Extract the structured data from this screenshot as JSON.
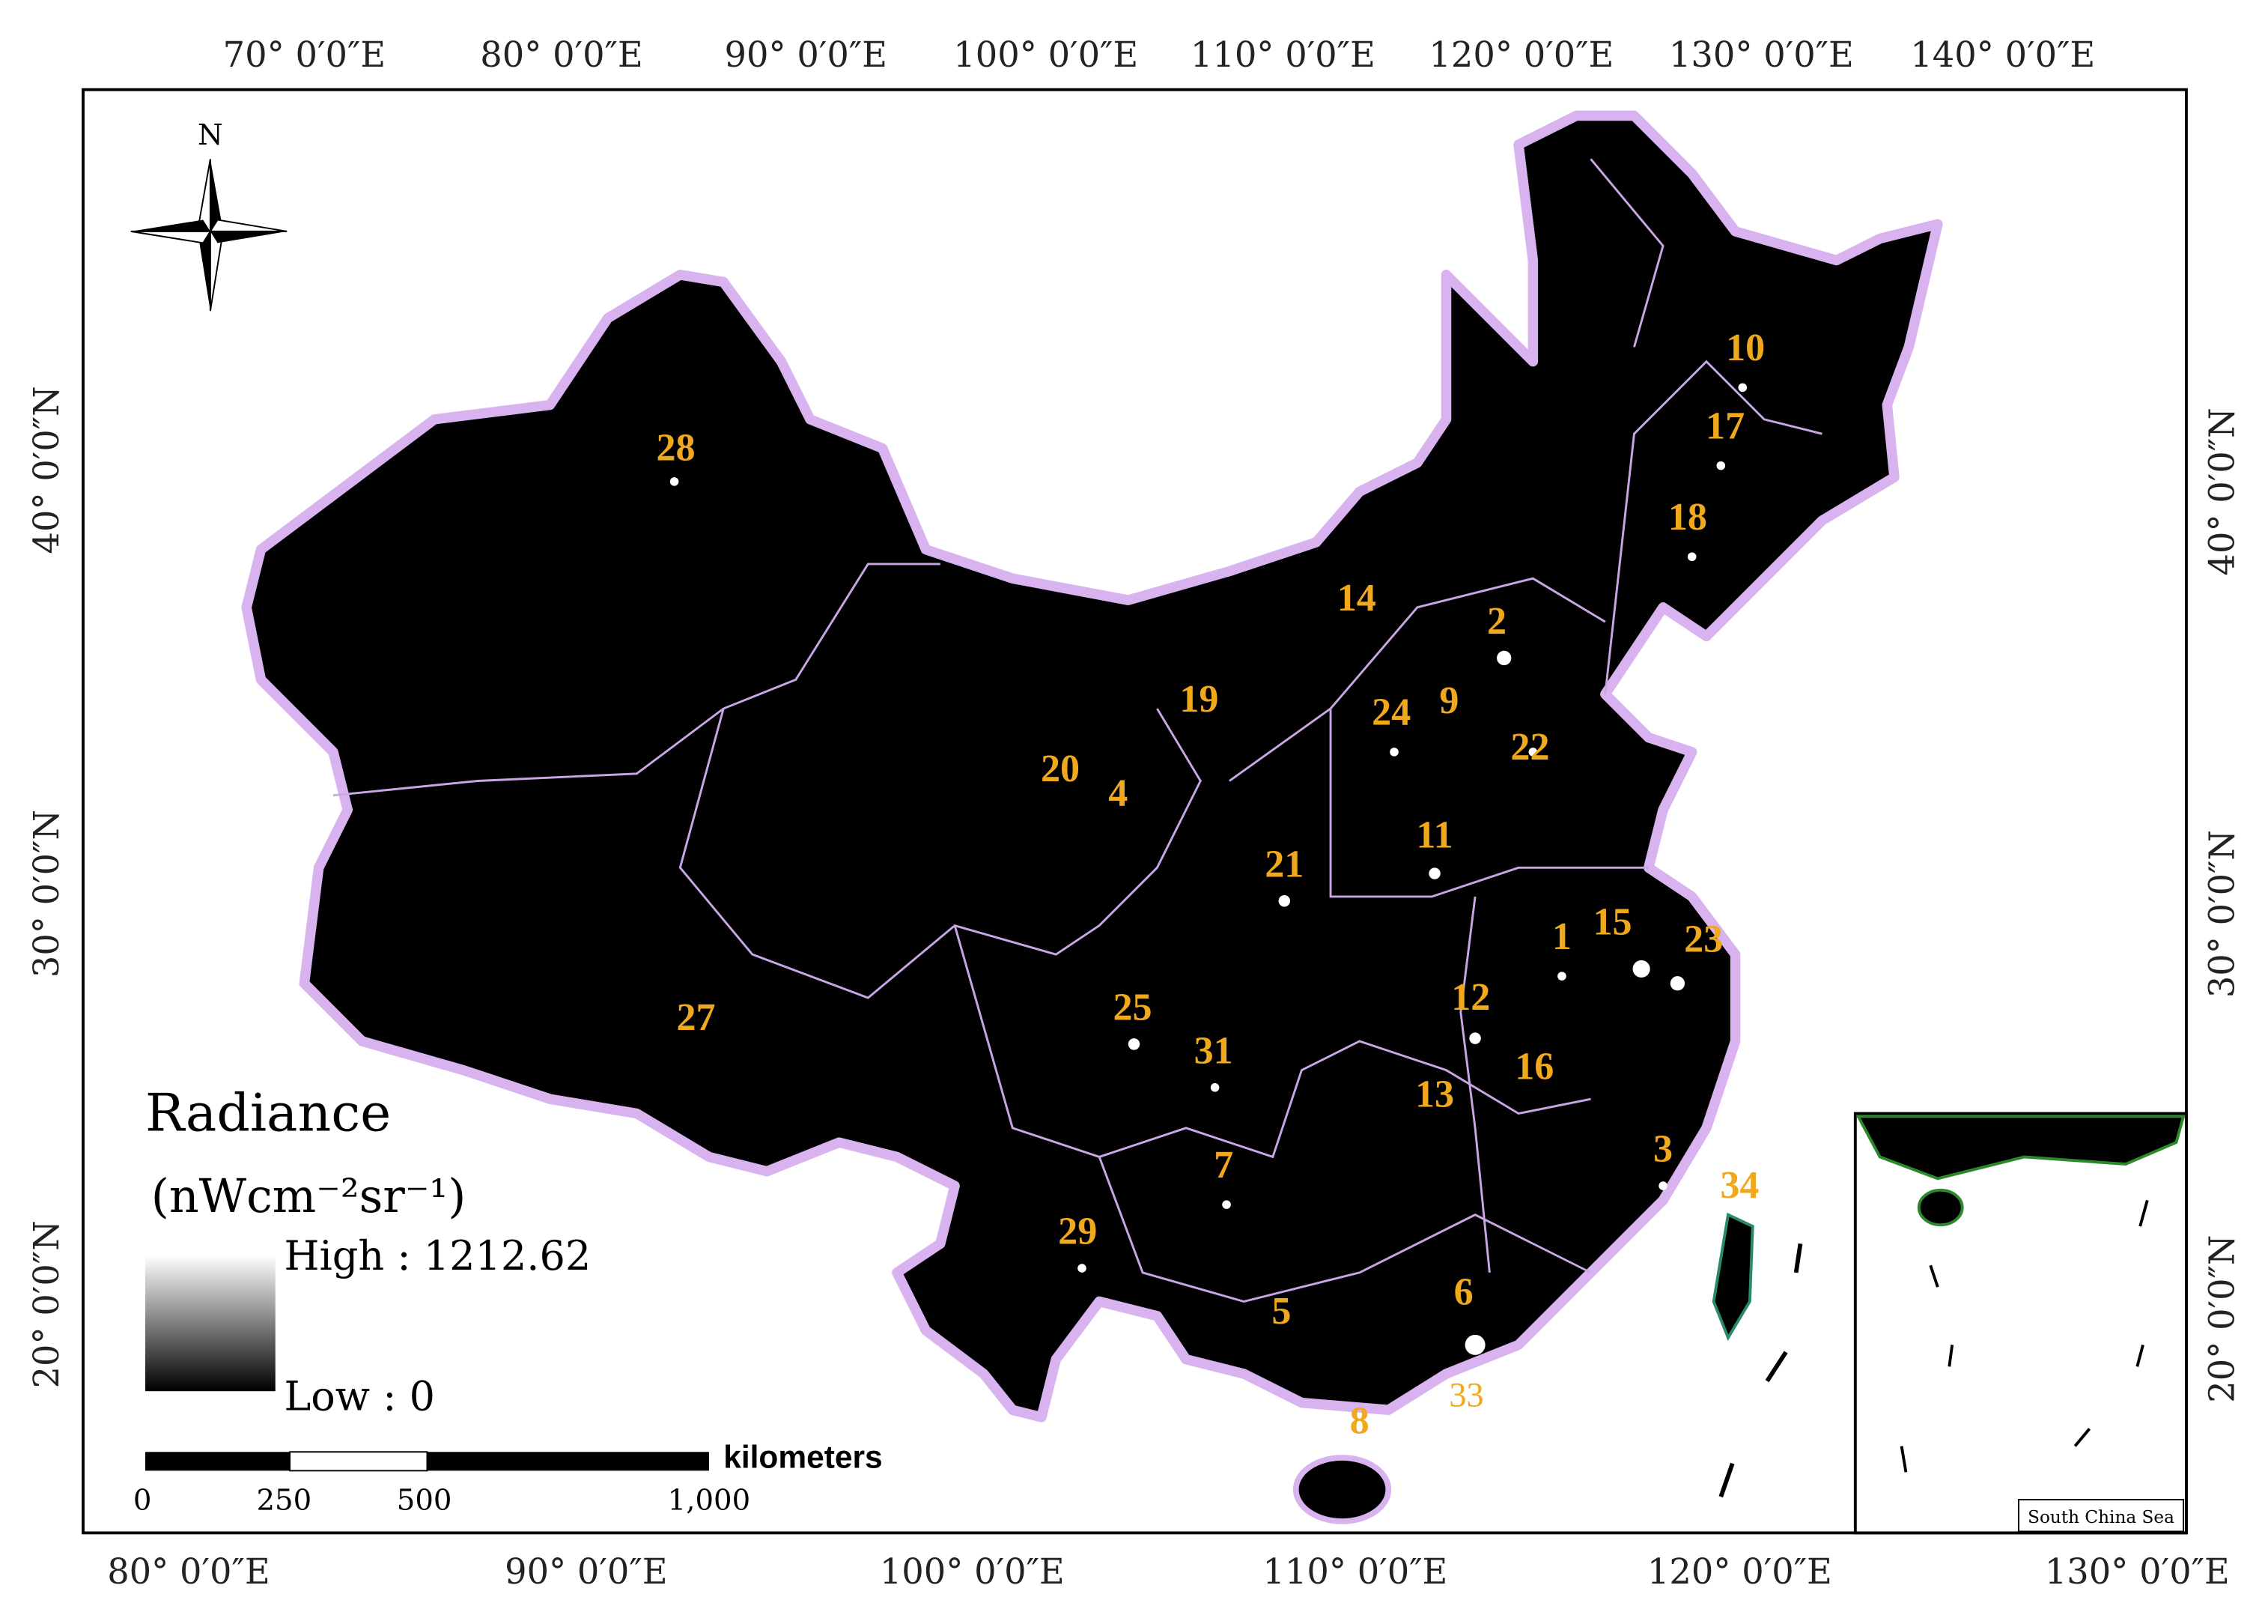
{
  "axes": {
    "top": [
      "70° 0′0″E",
      "80° 0′0″E",
      "90° 0′0″E",
      "100° 0′0″E",
      "110° 0′0″E",
      "120° 0′0″E",
      "130° 0′0″E",
      "140° 0′0″E"
    ],
    "bottom": [
      "80° 0′0″E",
      "90° 0′0″E",
      "100° 0′0″E",
      "110° 0′0″E",
      "120° 0′0″E",
      "130° 0′0″E"
    ],
    "left": [
      "40° 0′0″N",
      "30° 0′0″N",
      "20° 0′0″N"
    ],
    "right": [
      "40° 0′0″N",
      "30° 0′0″N",
      "20° 0′0″N"
    ]
  },
  "north": "N",
  "legend": {
    "title": "Radiance",
    "unit": "(nWcm⁻²sr⁻¹)",
    "high": "High : 1212.62",
    "low": "Low : 0"
  },
  "scale": {
    "unit": "kilometers",
    "labels": [
      "0",
      "250",
      "500",
      "1,000"
    ]
  },
  "regions": [
    "28",
    "10",
    "17",
    "18",
    "14",
    "2",
    "19",
    "24",
    "9",
    "22",
    "20",
    "4",
    "11",
    "21",
    "1",
    "15",
    "23",
    "27",
    "25",
    "12",
    "31",
    "16",
    "13",
    "3",
    "34",
    "7",
    "29",
    "6",
    "5",
    "33",
    "8"
  ],
  "inset": {
    "label": "South China Sea"
  }
}
